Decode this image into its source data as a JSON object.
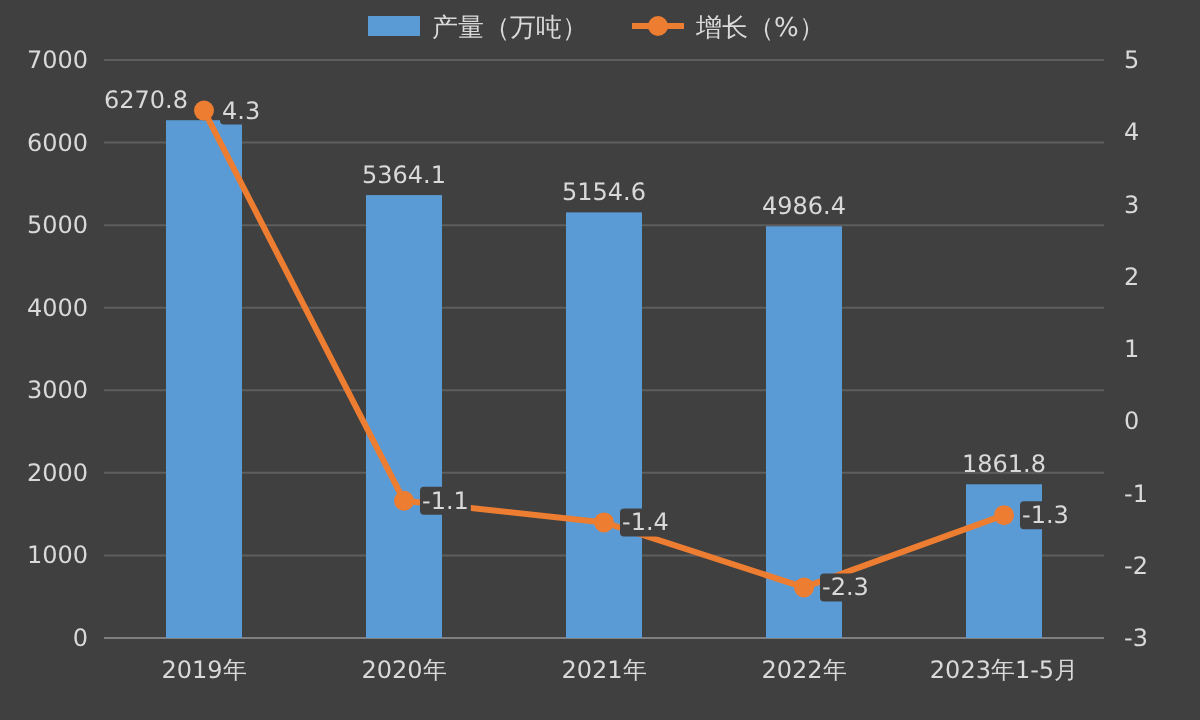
{
  "chart_data": {
    "type": "bar",
    "categories": [
      "2019年",
      "2020年",
      "2021年",
      "2022年",
      "2023年1-5月"
    ],
    "series": [
      {
        "name": "产量（万吨）",
        "color": "#5b9bd5",
        "values": [
          6270.8,
          5364.1,
          5154.6,
          4986.4,
          1861.8
        ]
      },
      {
        "name": "增长（%）",
        "type": "line",
        "axis": "y2",
        "color": "#ed7d31",
        "values": [
          4.3,
          -1.1,
          -1.4,
          -2.3,
          -1.3
        ]
      }
    ],
    "ylim": [
      0,
      7000
    ],
    "yticks": [
      0,
      1000,
      2000,
      3000,
      4000,
      5000,
      6000,
      7000
    ],
    "y2lim": [
      -3,
      5
    ],
    "y2ticks": [
      -3,
      -2,
      -1,
      0,
      1,
      2,
      3,
      4,
      5
    ],
    "grid": "y",
    "legend": "top",
    "data_labels": true,
    "marker": "circle"
  }
}
